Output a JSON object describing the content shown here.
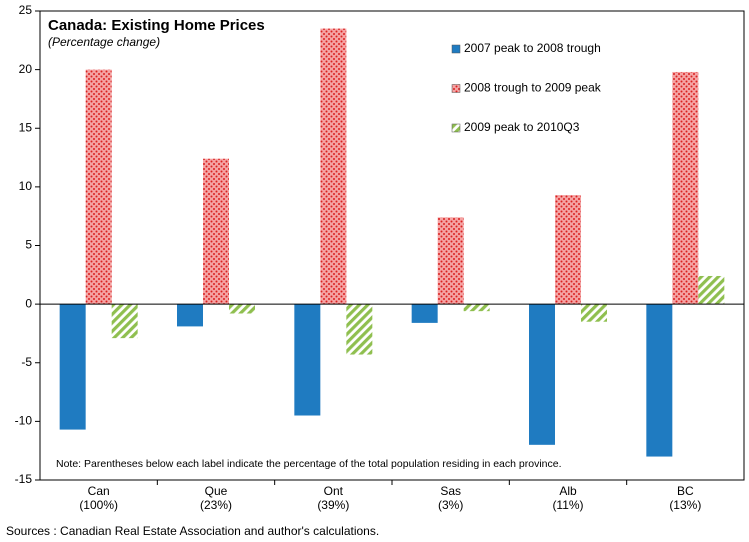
{
  "chart_data": {
    "type": "bar",
    "title": "Canada: Existing Home Prices",
    "subtitle": "(Percentage change)",
    "categories": [
      "Can",
      "Que",
      "Ont",
      "Sas",
      "Alb",
      "BC"
    ],
    "category_notes": [
      "(100%)",
      "(23%)",
      "(39%)",
      "(3%)",
      "(11%)",
      "(13%)"
    ],
    "series": [
      {
        "name": "2007 peak to 2008 trough",
        "color": "#1f7bc1",
        "values": [
          -10.7,
          -1.9,
          -9.5,
          -1.6,
          -12.0,
          -13.0
        ]
      },
      {
        "name": "2008 trough to 2009 peak",
        "color": "#f08a8a",
        "values": [
          20.0,
          12.4,
          23.5,
          7.4,
          9.3,
          19.8
        ]
      },
      {
        "name": "2009 peak to 2010Q3",
        "color": "#b9d98c",
        "values": [
          -2.9,
          -0.8,
          -4.3,
          -0.6,
          -1.5,
          2.4
        ]
      }
    ],
    "ylim": [
      -15,
      25
    ],
    "yticks": [
      -15,
      -10,
      -5,
      0,
      5,
      10,
      15,
      20,
      25
    ],
    "legend": "upper right",
    "grid": false,
    "note": "Note: Parentheses below each label indicate the percentage of the total population residing in each province.",
    "source": "Sources : Canadian Real Estate Association and author's calculations."
  }
}
